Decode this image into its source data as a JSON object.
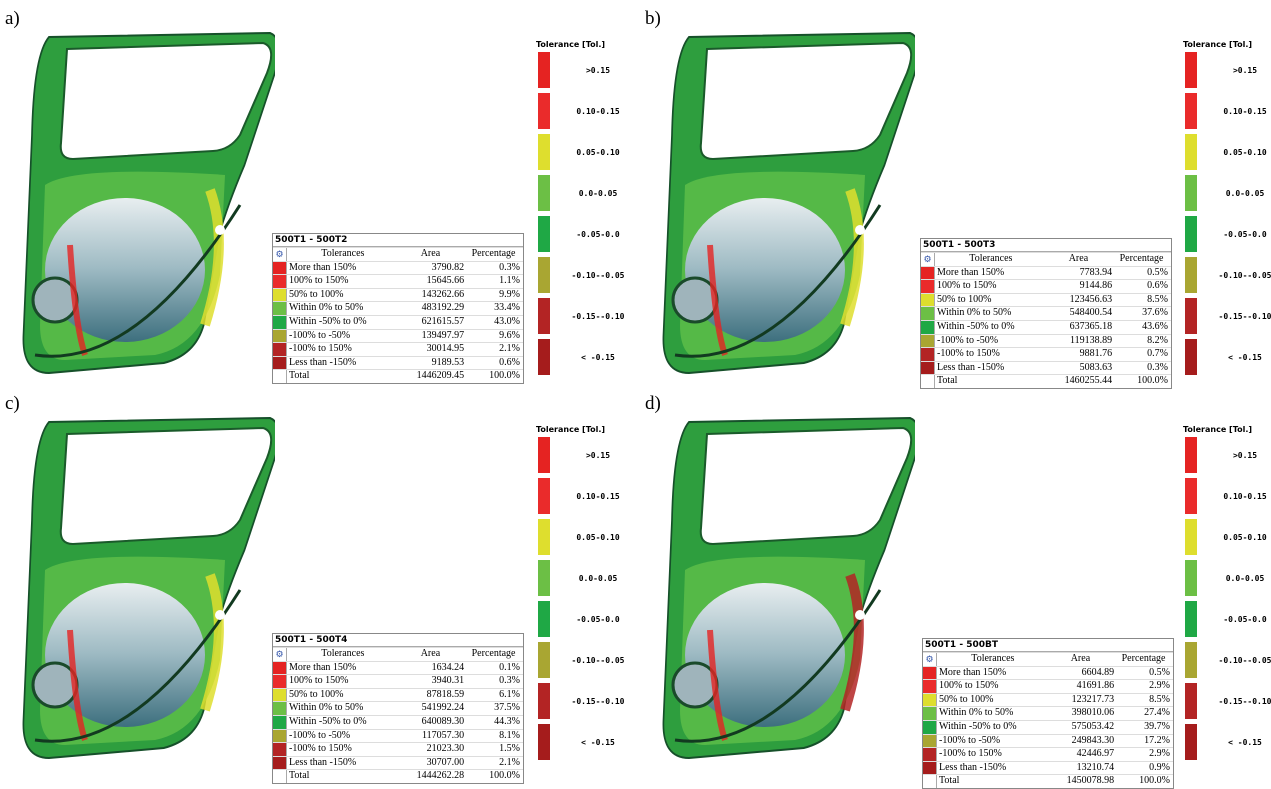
{
  "colors": [
    "#e52322",
    "#ea2b2b",
    "#dede2e",
    "#6cbf45",
    "#1fa845",
    "#a9a632",
    "#b32424",
    "#a51c1c"
  ],
  "panels": [
    {
      "label": "a)",
      "table": {
        "title": "500T1 - 500T2",
        "header": [
          "Tolerances",
          "Area",
          "Percentage"
        ],
        "rows": [
          [
            "More than 150%",
            "3790.82",
            "0.3%"
          ],
          [
            "100% to 150%",
            "15645.66",
            "1.1%"
          ],
          [
            "50% to 100%",
            "143262.66",
            "9.9%"
          ],
          [
            "Within 0% to 50%",
            "483192.29",
            "33.4%"
          ],
          [
            "Within -50% to 0%",
            "621615.57",
            "43.0%"
          ],
          [
            "-100% to -50%",
            "139497.97",
            "9.6%"
          ],
          [
            "-100% to 150%",
            "30014.95",
            "2.1%"
          ],
          [
            "Less than -150%",
            "9189.53",
            "0.6%"
          ],
          [
            "Total",
            "1446209.45",
            "100.0%"
          ]
        ]
      },
      "legend": {
        "title": "Tolerance [Tol.]",
        "items": [
          ">0.15",
          "0.10-0.15",
          "0.05-0.10",
          "0.0-0.05",
          "-0.05-0.0",
          "-0.10--0.05",
          "-0.15--0.10",
          "< -0.15"
        ]
      }
    },
    {
      "label": "b)",
      "table": {
        "title": "500T1 - 500T3",
        "header": [
          "Tolerances",
          "Area",
          "Percentage"
        ],
        "rows": [
          [
            "More than 150%",
            "7783.94",
            "0.5%"
          ],
          [
            "100% to 150%",
            "9144.86",
            "0.6%"
          ],
          [
            "50% to 100%",
            "123456.63",
            "8.5%"
          ],
          [
            "Within 0% to 50%",
            "548400.54",
            "37.6%"
          ],
          [
            "Within -50% to 0%",
            "637365.18",
            "43.6%"
          ],
          [
            "-100% to -50%",
            "119138.89",
            "8.2%"
          ],
          [
            "-100% to 150%",
            "9881.76",
            "0.7%"
          ],
          [
            "Less than -150%",
            "5083.63",
            "0.3%"
          ],
          [
            "Total",
            "1460255.44",
            "100.0%"
          ]
        ]
      },
      "legend": {
        "title": "Tolerance [Tol.]",
        "items": [
          ">0.15",
          "0.10-0.15",
          "0.05-0.10",
          "0.0-0.05",
          "-0.05-0.0",
          "-0.10--0.05",
          "-0.15--0.10",
          "< -0.15"
        ]
      }
    },
    {
      "label": "c)",
      "table": {
        "title": "500T1 - 500T4",
        "header": [
          "Tolerances",
          "Area",
          "Percentage"
        ],
        "rows": [
          [
            "More than 150%",
            "1634.24",
            "0.1%"
          ],
          [
            "100% to 150%",
            "3940.31",
            "0.3%"
          ],
          [
            "50% to 100%",
            "87818.59",
            "6.1%"
          ],
          [
            "Within 0% to 50%",
            "541992.24",
            "37.5%"
          ],
          [
            "Within -50% to 0%",
            "640089.30",
            "44.3%"
          ],
          [
            "-100% to -50%",
            "117057.30",
            "8.1%"
          ],
          [
            "-100% to 150%",
            "21023.30",
            "1.5%"
          ],
          [
            "Less than -150%",
            "30707.00",
            "2.1%"
          ],
          [
            "Total",
            "1444262.28",
            "100.0%"
          ]
        ]
      },
      "legend": {
        "title": "Tolerance [Tol.]",
        "items": [
          ">0.15",
          "0.10-0.15",
          "0.05-0.10",
          "0.0-0.05",
          "-0.05-0.0",
          "-0.10--0.05",
          "-0.15--0.10",
          "< -0.15"
        ]
      }
    },
    {
      "label": "d)",
      "table": {
        "title": "500T1 - 500BT",
        "header": [
          "Tolerances",
          "Area",
          "Percentage"
        ],
        "rows": [
          [
            "More than 150%",
            "6604.89",
            "0.5%"
          ],
          [
            "100% to 150%",
            "41691.86",
            "2.9%"
          ],
          [
            "50% to 100%",
            "123217.73",
            "8.5%"
          ],
          [
            "Within 0% to 50%",
            "398010.06",
            "27.4%"
          ],
          [
            "Within -50% to 0%",
            "575053.42",
            "39.7%"
          ],
          [
            "-100% to -50%",
            "249843.30",
            "17.2%"
          ],
          [
            "-100% to 150%",
            "42446.97",
            "2.9%"
          ],
          [
            "Less than -150%",
            "13210.74",
            "0.9%"
          ],
          [
            "Total",
            "1450078.98",
            "100.0%"
          ]
        ]
      },
      "legend": {
        "title": "Tolerance [Tol.]",
        "items": [
          ">0.15",
          "0.10-0.15",
          "0.05-0.10",
          "0.0-0.05",
          "-0.05-0.0",
          "-0.10--0.05",
          "-0.15--0.10",
          "< -0.15"
        ]
      }
    }
  ]
}
